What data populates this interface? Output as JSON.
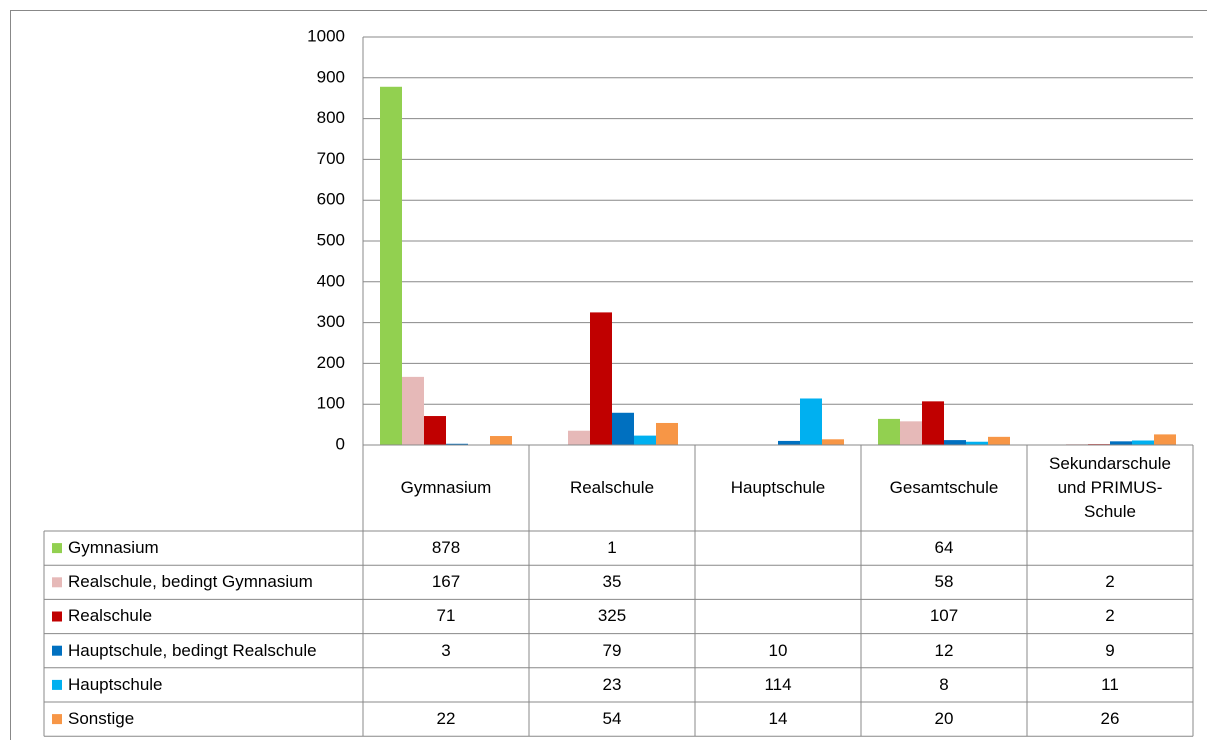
{
  "chart_data": {
    "type": "bar",
    "categories": [
      "Gymnasium",
      "Realschule",
      "Hauptschule",
      "Gesamtschule",
      "Sekundarschule und PRIMUS-Schule"
    ],
    "series": [
      {
        "name": "Gymnasium",
        "color": "#92d050",
        "values": [
          878,
          1,
          null,
          64,
          null
        ]
      },
      {
        "name": "Realschule, bedingt Gymnasium",
        "color": "#e6b9b8",
        "values": [
          167,
          35,
          null,
          58,
          2
        ]
      },
      {
        "name": "Realschule",
        "color": "#c00000",
        "values": [
          71,
          325,
          null,
          107,
          2
        ]
      },
      {
        "name": "Hauptschule, bedingt Realschule",
        "color": "#0070c0",
        "values": [
          3,
          79,
          10,
          12,
          9
        ]
      },
      {
        "name": "Hauptschule",
        "color": "#00b0f0",
        "values": [
          null,
          23,
          114,
          8,
          11
        ]
      },
      {
        "name": "Sonstige",
        "color": "#f79646",
        "values": [
          22,
          54,
          14,
          20,
          26
        ]
      }
    ],
    "ylim": [
      0,
      1000
    ],
    "yticks": [
      0,
      100,
      200,
      300,
      400,
      500,
      600,
      700,
      800,
      900,
      1000
    ],
    "grid": true
  }
}
